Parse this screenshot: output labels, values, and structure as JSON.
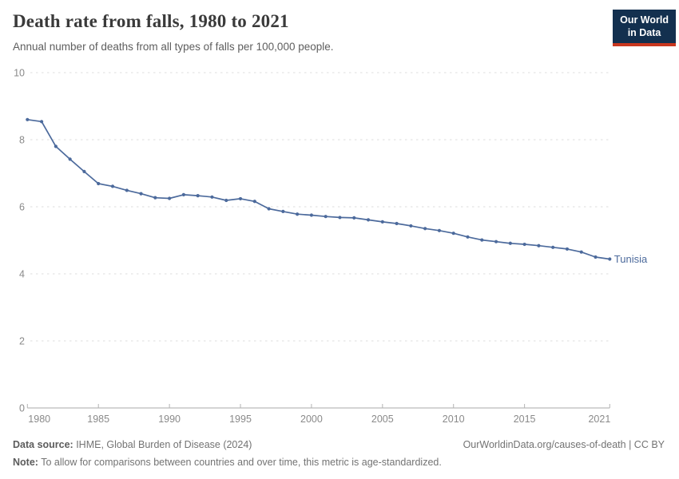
{
  "header": {
    "title": "Death rate from falls, 1980 to 2021",
    "subtitle": "Annual number of deaths from all types of falls per 100,000 people.",
    "logo": {
      "line1": "Our World",
      "line2": "in Data",
      "bg_color": "#13304f",
      "accent_color": "#c9371f"
    }
  },
  "chart_data": {
    "type": "line",
    "title": "Death rate from falls, 1980 to 2021",
    "xlabel": "",
    "ylabel": "",
    "xlim": [
      1980,
      2021
    ],
    "ylim": [
      0,
      10
    ],
    "x_ticks": [
      1980,
      1985,
      1990,
      1995,
      2000,
      2005,
      2010,
      2015,
      2021
    ],
    "y_ticks": [
      0,
      2,
      4,
      6,
      8,
      10
    ],
    "grid": "horizontal-dashed",
    "legend_position": "end-of-line-label",
    "series": [
      {
        "name": "Tunisia",
        "color": "#4C6A9C",
        "x": [
          1980,
          1981,
          1982,
          1983,
          1984,
          1985,
          1986,
          1987,
          1988,
          1989,
          1990,
          1991,
          1992,
          1993,
          1994,
          1995,
          1996,
          1997,
          1998,
          1999,
          2000,
          2001,
          2002,
          2003,
          2004,
          2005,
          2006,
          2007,
          2008,
          2009,
          2010,
          2011,
          2012,
          2013,
          2014,
          2015,
          2016,
          2017,
          2018,
          2019,
          2020,
          2021
        ],
        "values": [
          8.6,
          8.54,
          7.8,
          7.42,
          7.05,
          6.69,
          6.61,
          6.49,
          6.39,
          6.27,
          6.25,
          6.36,
          6.33,
          6.29,
          6.19,
          6.24,
          6.16,
          5.94,
          5.86,
          5.78,
          5.75,
          5.71,
          5.68,
          5.67,
          5.61,
          5.55,
          5.5,
          5.43,
          5.35,
          5.29,
          5.21,
          5.1,
          5.01,
          4.96,
          4.91,
          4.88,
          4.84,
          4.79,
          4.74,
          4.65,
          4.5,
          4.44
        ]
      }
    ],
    "colors": {
      "gridline": "#dedede",
      "axis_line": "#a8a8a8",
      "tick": "#b3b3b3",
      "tick_label": "#8a8a8a"
    }
  },
  "footer": {
    "source_label": "Data source:",
    "source_text": " IHME, Global Burden of Disease (2024)",
    "note_label": "Note:",
    "note_text": " To allow for comparisons between countries and over time, this metric is age-standardized.",
    "right_text": "OurWorldinData.org/causes-of-death | CC BY"
  }
}
